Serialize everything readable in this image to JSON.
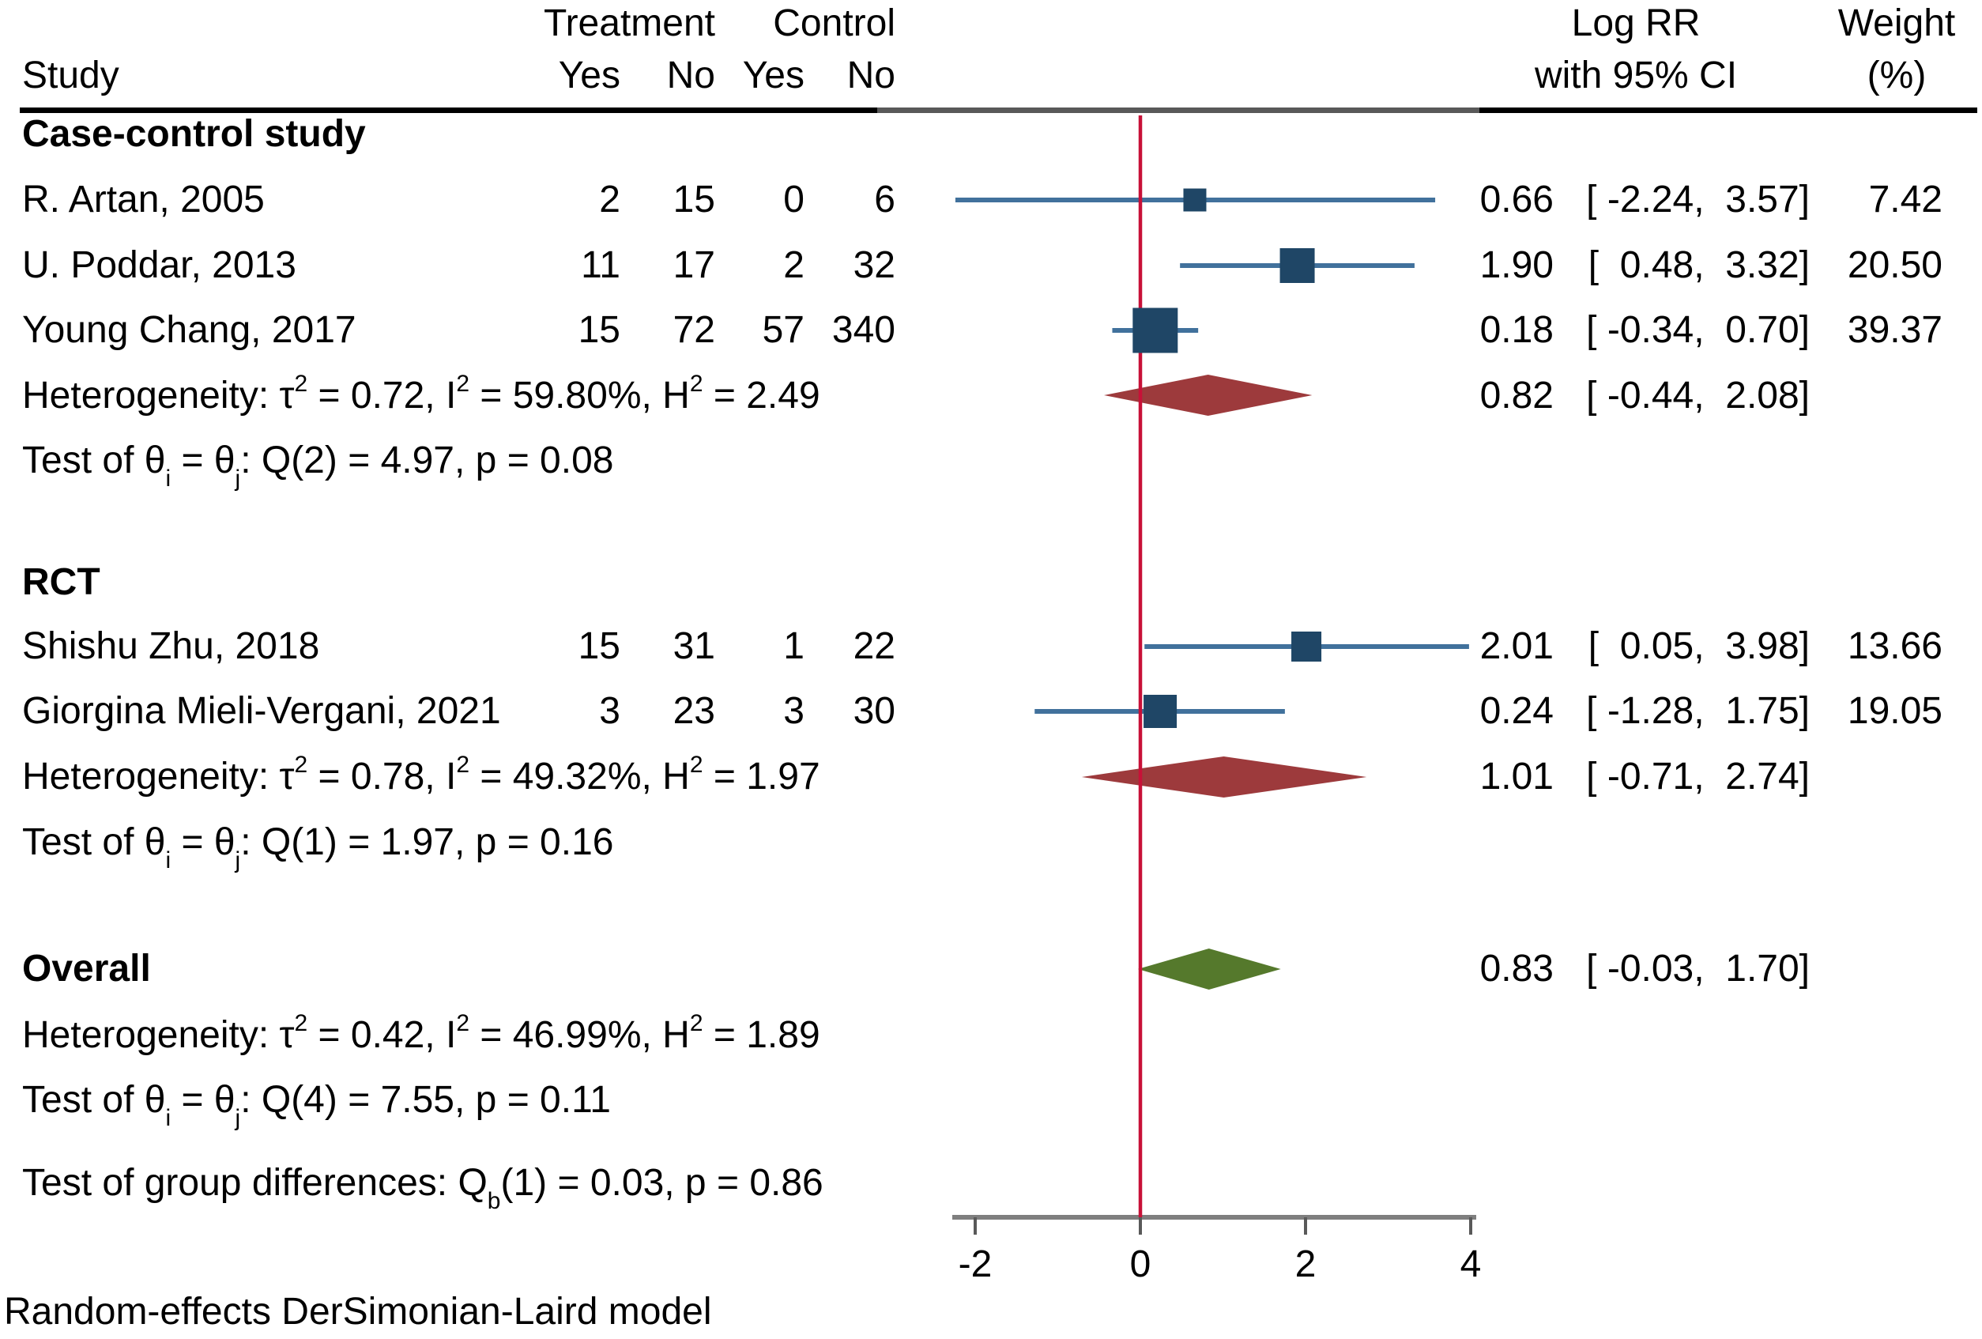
{
  "header": {
    "study": "Study",
    "treatment": "Treatment",
    "control": "Control",
    "t_yes": "Yes",
    "t_no": "No",
    "c_yes": "Yes",
    "c_no": "No",
    "effect_top": "Log RR",
    "effect_bottom": "with 95% CI",
    "weight_top": "Weight",
    "weight_bottom": "(%)"
  },
  "footer": {
    "note": "Random-effects DerSimonian-Laird model"
  },
  "colors": {
    "reference_line": "#c81138",
    "study_marker": "#1f4666",
    "ci_line": "#41719c",
    "subgroup_diamond": "#9d3a3c",
    "overall_diamond": "#55792c",
    "axis": "#7f7f7f",
    "tick": "#595959"
  },
  "chart_data": {
    "type": "forest",
    "effect_measure": "Log RR",
    "x_axis": {
      "ticks": [
        -2,
        0,
        2,
        4
      ],
      "reference_line": 0,
      "range": [
        -2.3,
        4.06
      ]
    },
    "groups": [
      {
        "label": "Case-control study",
        "studies": [
          {
            "name": "R. Artan, 2005",
            "treatment_yes": "2",
            "treatment_no": "15",
            "control_yes": "0",
            "control_no": "6",
            "estimate": 0.66,
            "ci_low": -2.24,
            "ci_high": 3.57,
            "estimate_text": "0.66",
            "ci_text": "[ -2.24,  3.57]",
            "weight": "7.42"
          },
          {
            "name": "U. Poddar, 2013",
            "treatment_yes": "11",
            "treatment_no": "17",
            "control_yes": "2",
            "control_no": "32",
            "estimate": 1.9,
            "ci_low": 0.48,
            "ci_high": 3.32,
            "estimate_text": "1.90",
            "ci_text": "[  0.48,  3.32]",
            "weight": "20.50"
          },
          {
            "name": "Young Chang, 2017",
            "treatment_yes": "15",
            "treatment_no": "72",
            "control_yes": "57",
            "control_no": "340",
            "estimate": 0.18,
            "ci_low": -0.34,
            "ci_high": 0.7,
            "estimate_text": "0.18",
            "ci_text": "[ -0.34,  0.70]",
            "weight": "39.37"
          }
        ],
        "summary": {
          "estimate": 0.82,
          "ci_low": -0.44,
          "ci_high": 2.08,
          "estimate_text": "0.82",
          "ci_text": "[ -0.44,  2.08]"
        },
        "heterogeneity": [
          {
            "t": "Heterogeneity: τ"
          },
          {
            "t": "2",
            "sup": true
          },
          {
            "t": " = 0.72, I"
          },
          {
            "t": "2",
            "sup": true
          },
          {
            "t": " = 59.80%, H"
          },
          {
            "t": "2",
            "sup": true
          },
          {
            "t": " = 2.49"
          }
        ],
        "test": [
          {
            "t": "Test of θ"
          },
          {
            "t": "i",
            "sub": true
          },
          {
            "t": " = θ"
          },
          {
            "t": "j",
            "sub": true
          },
          {
            "t": ": Q(2) = 4.97, p = 0.08"
          }
        ]
      },
      {
        "label": "RCT",
        "studies": [
          {
            "name": "Shishu Zhu, 2018",
            "treatment_yes": "15",
            "treatment_no": "31",
            "control_yes": "1",
            "control_no": "22",
            "estimate": 2.01,
            "ci_low": 0.05,
            "ci_high": 3.98,
            "estimate_text": "2.01",
            "ci_text": "[  0.05,  3.98]",
            "weight": "13.66"
          },
          {
            "name": "Giorgina Mieli-Vergani, 2021",
            "treatment_yes": "3",
            "treatment_no": "23",
            "control_yes": "3",
            "control_no": "30",
            "estimate": 0.24,
            "ci_low": -1.28,
            "ci_high": 1.75,
            "estimate_text": "0.24",
            "ci_text": "[ -1.28,  1.75]",
            "weight": "19.05"
          }
        ],
        "summary": {
          "estimate": 1.01,
          "ci_low": -0.71,
          "ci_high": 2.74,
          "estimate_text": "1.01",
          "ci_text": "[ -0.71,  2.74]"
        },
        "heterogeneity": [
          {
            "t": "Heterogeneity: τ"
          },
          {
            "t": "2",
            "sup": true
          },
          {
            "t": " = 0.78, I"
          },
          {
            "t": "2",
            "sup": true
          },
          {
            "t": " = 49.32%, H"
          },
          {
            "t": "2",
            "sup": true
          },
          {
            "t": " = 1.97"
          }
        ],
        "test": [
          {
            "t": "Test of θ"
          },
          {
            "t": "i",
            "sub": true
          },
          {
            "t": " = θ"
          },
          {
            "t": "j",
            "sub": true
          },
          {
            "t": ": Q(1) = 1.97, p = 0.16"
          }
        ]
      }
    ],
    "overall": {
      "label": "Overall",
      "estimate": 0.83,
      "ci_low": -0.03,
      "ci_high": 1.7,
      "estimate_text": "0.83",
      "ci_text": "[ -0.03,  1.70]",
      "heterogeneity": [
        {
          "t": "Heterogeneity: τ"
        },
        {
          "t": "2",
          "sup": true
        },
        {
          "t": " = 0.42, I"
        },
        {
          "t": "2",
          "sup": true
        },
        {
          "t": " = 46.99%, H"
        },
        {
          "t": "2",
          "sup": true
        },
        {
          "t": " = 1.89"
        }
      ],
      "test": [
        {
          "t": "Test of θ"
        },
        {
          "t": "i",
          "sub": true
        },
        {
          "t": " = θ"
        },
        {
          "t": "j",
          "sub": true
        },
        {
          "t": ": Q(4) = 7.55, p = 0.11"
        }
      ]
    },
    "group_difference": [
      {
        "t": "Test of group differences: Q"
      },
      {
        "t": "b",
        "sub": true
      },
      {
        "t": "(1) = 0.03, p = 0.86"
      }
    ]
  }
}
